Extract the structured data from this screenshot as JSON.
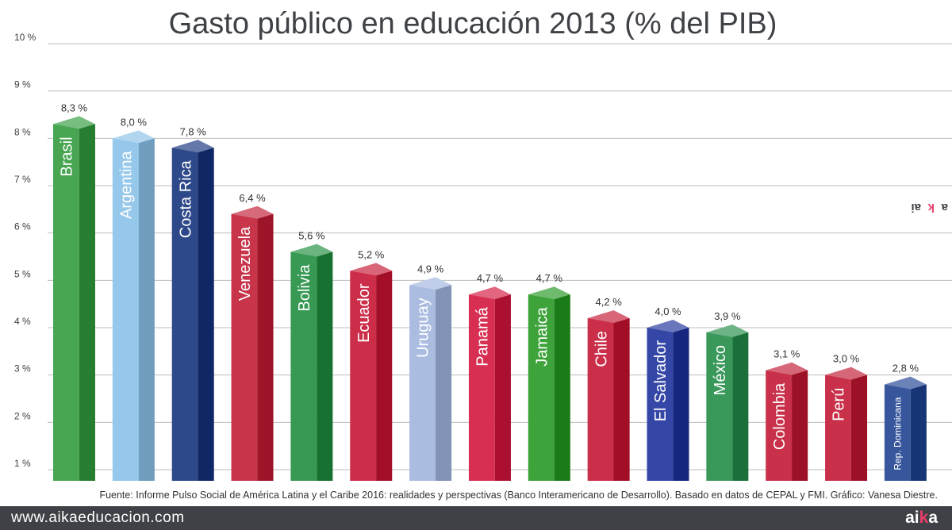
{
  "chart_data": {
    "type": "bar",
    "title": "Gasto público en educación 2013 (% del PIB)",
    "ylim": [
      0.8,
      10
    ],
    "yticks": [
      1,
      2,
      3,
      4,
      5,
      6,
      7,
      8,
      9,
      10
    ],
    "ytick_labels": [
      "1 %",
      "2 %",
      "3 %",
      "4 %",
      "5 %",
      "6 %",
      "7 %",
      "8 %",
      "9 %",
      "10 %"
    ],
    "grid": true,
    "categories": [
      "Brasil",
      "Argentina",
      "Costa Rica",
      "Venezuela",
      "Bolivia",
      "Ecuador",
      "Uruguay",
      "Panamá",
      "Jamaica",
      "Chile",
      "El Salvador",
      "México",
      "Colombia",
      "Perú",
      "Rep. Dominicana"
    ],
    "values": [
      8.3,
      8.0,
      7.8,
      6.4,
      5.6,
      5.2,
      4.9,
      4.7,
      4.7,
      4.2,
      4.0,
      3.9,
      3.1,
      3.0,
      2.8
    ],
    "value_labels": [
      "8,3 %",
      "8,0 %",
      "7,8 %",
      "6,4 %",
      "5,6 %",
      "5,2 %",
      "4,9 %",
      "4,7 %",
      "4,7 %",
      "4,2 %",
      "4,0 %",
      "3,9 %",
      "3,1 %",
      "3,0 %",
      "2,8 %"
    ],
    "bar_colors": [
      "#2f9a3c",
      "#88c0e8",
      "#12307a",
      "#c11a32",
      "#1c8b3c",
      "#c51230",
      "#9fb3dd",
      "#d2133a",
      "#22961f",
      "#c41230",
      "#1a2e9a",
      "#1f8a45",
      "#c01530",
      "#c01530",
      "#1c3f8f"
    ]
  },
  "source_note": "Fuente: Informe Pulso Social de América Latina y el Caribe 2016: realidades y perspectivas (Banco Interamericano de Desarrollo). Basado en datos de CEPAL y FMI. Gráfico: Vanesa Diestre.",
  "footer": {
    "url": "www.aikaeducacion.com",
    "logo_left": "ai",
    "logo_accent": "k",
    "logo_right": "a"
  },
  "side_logo": {
    "left": "ai",
    "accent": "k",
    "right": "a"
  }
}
